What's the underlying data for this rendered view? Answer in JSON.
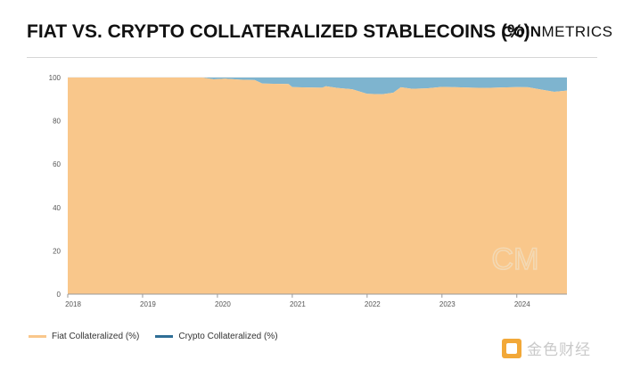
{
  "header": {
    "title": "FIAT VS. CRYPTO COLLATERALIZED STABLECOINS (%)",
    "brand_bold": "COIN",
    "brand_light": "METRICS"
  },
  "watermark": {
    "text": "CM"
  },
  "footer": {
    "logo_text": "金色财经"
  },
  "colors": {
    "fiat": "#F9C78B",
    "crypto": "#7EB4CF",
    "grid": "#E3E3E3",
    "axis": "#9A9A9A"
  },
  "chart_data": {
    "type": "area",
    "stacked": true,
    "title": "FIAT VS. CRYPTO COLLATERALIZED STABLECOINS (%)",
    "xlabel": "",
    "ylabel": "",
    "xlim": [
      2018.0,
      2024.67
    ],
    "ylim": [
      0,
      100
    ],
    "yticks": [
      0,
      20,
      40,
      60,
      80,
      100
    ],
    "xticks": [
      "2018",
      "2019",
      "2020",
      "2021",
      "2022",
      "2023",
      "2024"
    ],
    "grid": true,
    "legend_position": "bottom-left",
    "x": [
      2018.0,
      2018.5,
      2019.0,
      2019.5,
      2019.8,
      2019.95,
      2020.1,
      2020.3,
      2020.5,
      2020.6,
      2020.75,
      2020.95,
      2021.0,
      2021.2,
      2021.4,
      2021.45,
      2021.6,
      2021.8,
      2022.0,
      2022.2,
      2022.35,
      2022.45,
      2022.6,
      2022.8,
      2023.0,
      2023.2,
      2023.4,
      2023.6,
      2023.8,
      2024.0,
      2024.15,
      2024.3,
      2024.5,
      2024.67
    ],
    "series": [
      {
        "name": "Fiat Collateralized (%)",
        "values": [
          100,
          100,
          100,
          100,
          100,
          99.2,
          99.5,
          99.0,
          98.8,
          97.2,
          97.1,
          97.0,
          95.6,
          95.4,
          95.3,
          96.0,
          95.2,
          94.6,
          92.5,
          92.3,
          93.0,
          95.5,
          94.8,
          95.0,
          95.7,
          95.5,
          95.3,
          95.2,
          95.4,
          95.6,
          95.5,
          94.6,
          93.4,
          94.0
        ]
      },
      {
        "name": "Crypto Collateralized (%)",
        "values": [
          0,
          0,
          0,
          0,
          0,
          0.8,
          0.5,
          1.0,
          1.2,
          2.8,
          2.9,
          3.0,
          4.4,
          4.6,
          4.7,
          4.0,
          4.8,
          5.4,
          7.5,
          7.7,
          7.0,
          4.5,
          5.2,
          5.0,
          4.3,
          4.5,
          4.7,
          4.8,
          4.6,
          4.4,
          4.5,
          5.4,
          6.6,
          6.0
        ]
      }
    ]
  }
}
